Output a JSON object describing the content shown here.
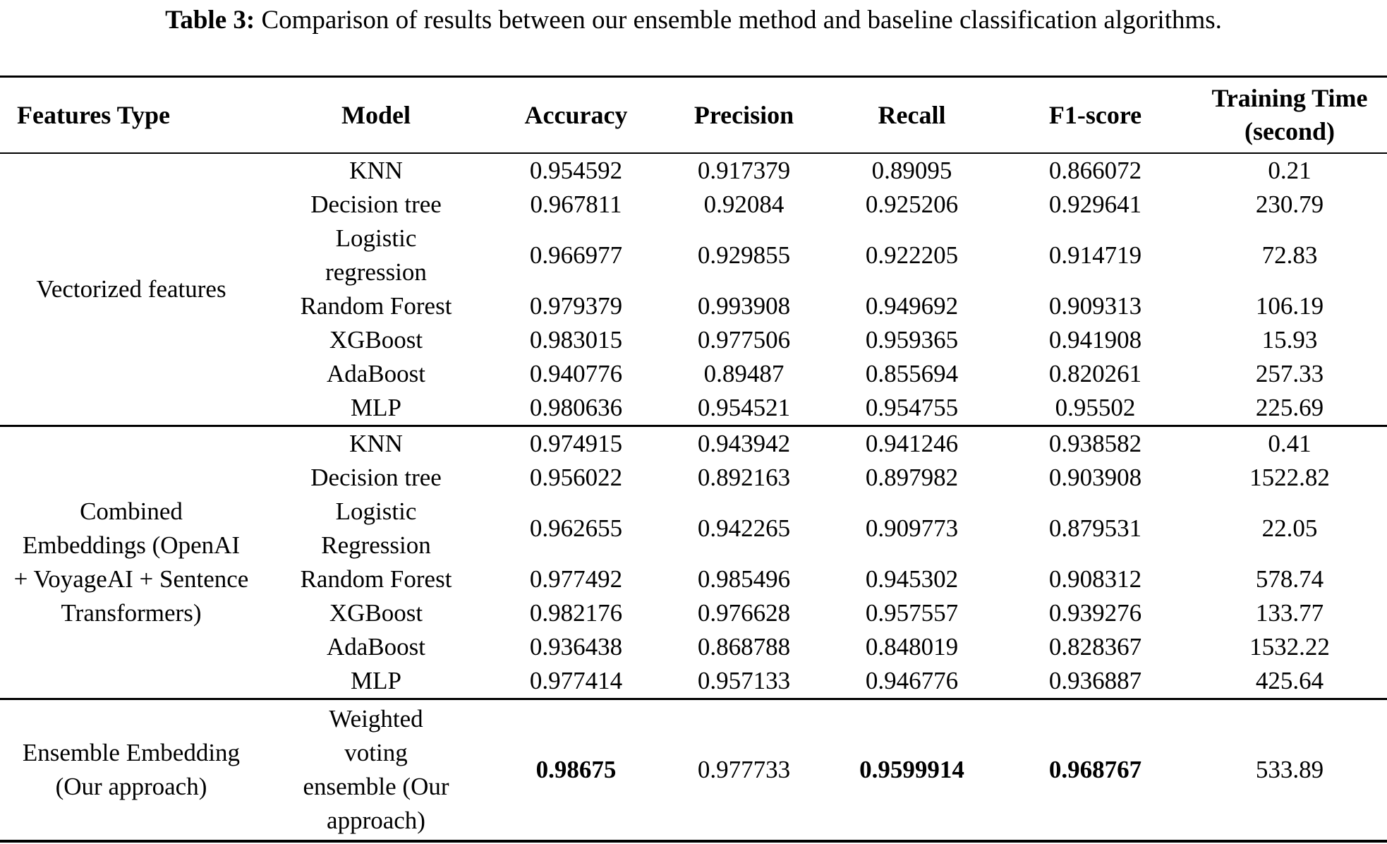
{
  "caption": {
    "label": "Table 3:",
    "text": "Comparison of results between our ensemble method and baseline classification algorithms."
  },
  "table": {
    "columns": [
      "Features Type",
      "Model",
      "Accuracy",
      "Precision",
      "Recall",
      "F1-score",
      "Training Time\n(second)"
    ],
    "groups": [
      {
        "feature_type": "Vectorized features",
        "rows": [
          {
            "model": "KNN",
            "values": [
              "0.954592",
              "0.917379",
              "0.89095",
              "0.866072",
              "0.21"
            ],
            "bold": [
              false,
              false,
              false,
              false,
              false
            ]
          },
          {
            "model": "Decision tree",
            "values": [
              "0.967811",
              "0.92084",
              "0.925206",
              "0.929641",
              "230.79"
            ],
            "bold": [
              false,
              false,
              false,
              false,
              false
            ]
          },
          {
            "model": "Logistic\nregression",
            "values": [
              "0.966977",
              "0.929855",
              "0.922205",
              "0.914719",
              "72.83"
            ],
            "bold": [
              false,
              false,
              false,
              false,
              false
            ]
          },
          {
            "model": "Random Forest",
            "values": [
              "0.979379",
              "0.993908",
              "0.949692",
              "0.909313",
              "106.19"
            ],
            "bold": [
              false,
              false,
              false,
              false,
              false
            ]
          },
          {
            "model": "XGBoost",
            "values": [
              "0.983015",
              "0.977506",
              "0.959365",
              "0.941908",
              "15.93"
            ],
            "bold": [
              false,
              false,
              false,
              false,
              false
            ]
          },
          {
            "model": "AdaBoost",
            "values": [
              "0.940776",
              "0.89487",
              "0.855694",
              "0.820261",
              "257.33"
            ],
            "bold": [
              false,
              false,
              false,
              false,
              false
            ]
          },
          {
            "model": "MLP",
            "values": [
              "0.980636",
              "0.954521",
              "0.954755",
              "0.95502",
              "225.69"
            ],
            "bold": [
              false,
              false,
              false,
              false,
              false
            ]
          }
        ]
      },
      {
        "feature_type": "Combined\nEmbeddings (OpenAI\n+ VoyageAI + Sentence\nTransformers)",
        "rows": [
          {
            "model": "KNN",
            "values": [
              "0.974915",
              "0.943942",
              "0.941246",
              "0.938582",
              "0.41"
            ],
            "bold": [
              false,
              false,
              false,
              false,
              false
            ]
          },
          {
            "model": "Decision tree",
            "values": [
              "0.956022",
              "0.892163",
              "0.897982",
              "0.903908",
              "1522.82"
            ],
            "bold": [
              false,
              false,
              false,
              false,
              false
            ]
          },
          {
            "model": "Logistic\nRegression",
            "values": [
              "0.962655",
              "0.942265",
              "0.909773",
              "0.879531",
              "22.05"
            ],
            "bold": [
              false,
              false,
              false,
              false,
              false
            ]
          },
          {
            "model": "Random Forest",
            "values": [
              "0.977492",
              "0.985496",
              "0.945302",
              "0.908312",
              "578.74"
            ],
            "bold": [
              false,
              false,
              false,
              false,
              false
            ]
          },
          {
            "model": "XGBoost",
            "values": [
              "0.982176",
              "0.976628",
              "0.957557",
              "0.939276",
              "133.77"
            ],
            "bold": [
              false,
              false,
              false,
              false,
              false
            ]
          },
          {
            "model": "AdaBoost",
            "values": [
              "0.936438",
              "0.868788",
              "0.848019",
              "0.828367",
              "1532.22"
            ],
            "bold": [
              false,
              false,
              false,
              false,
              false
            ]
          },
          {
            "model": "MLP",
            "values": [
              "0.977414",
              "0.957133",
              "0.946776",
              "0.936887",
              "425.64"
            ],
            "bold": [
              false,
              false,
              false,
              false,
              false
            ]
          }
        ]
      },
      {
        "feature_type": "Ensemble Embedding\n(Our approach)",
        "rows": [
          {
            "model": "Weighted\nvoting\nensemble (Our\napproach)",
            "values": [
              "0.98675",
              "0.977733",
              "0.9599914",
              "0.968767",
              "533.89"
            ],
            "bold": [
              true,
              false,
              true,
              true,
              false
            ]
          }
        ]
      }
    ]
  }
}
